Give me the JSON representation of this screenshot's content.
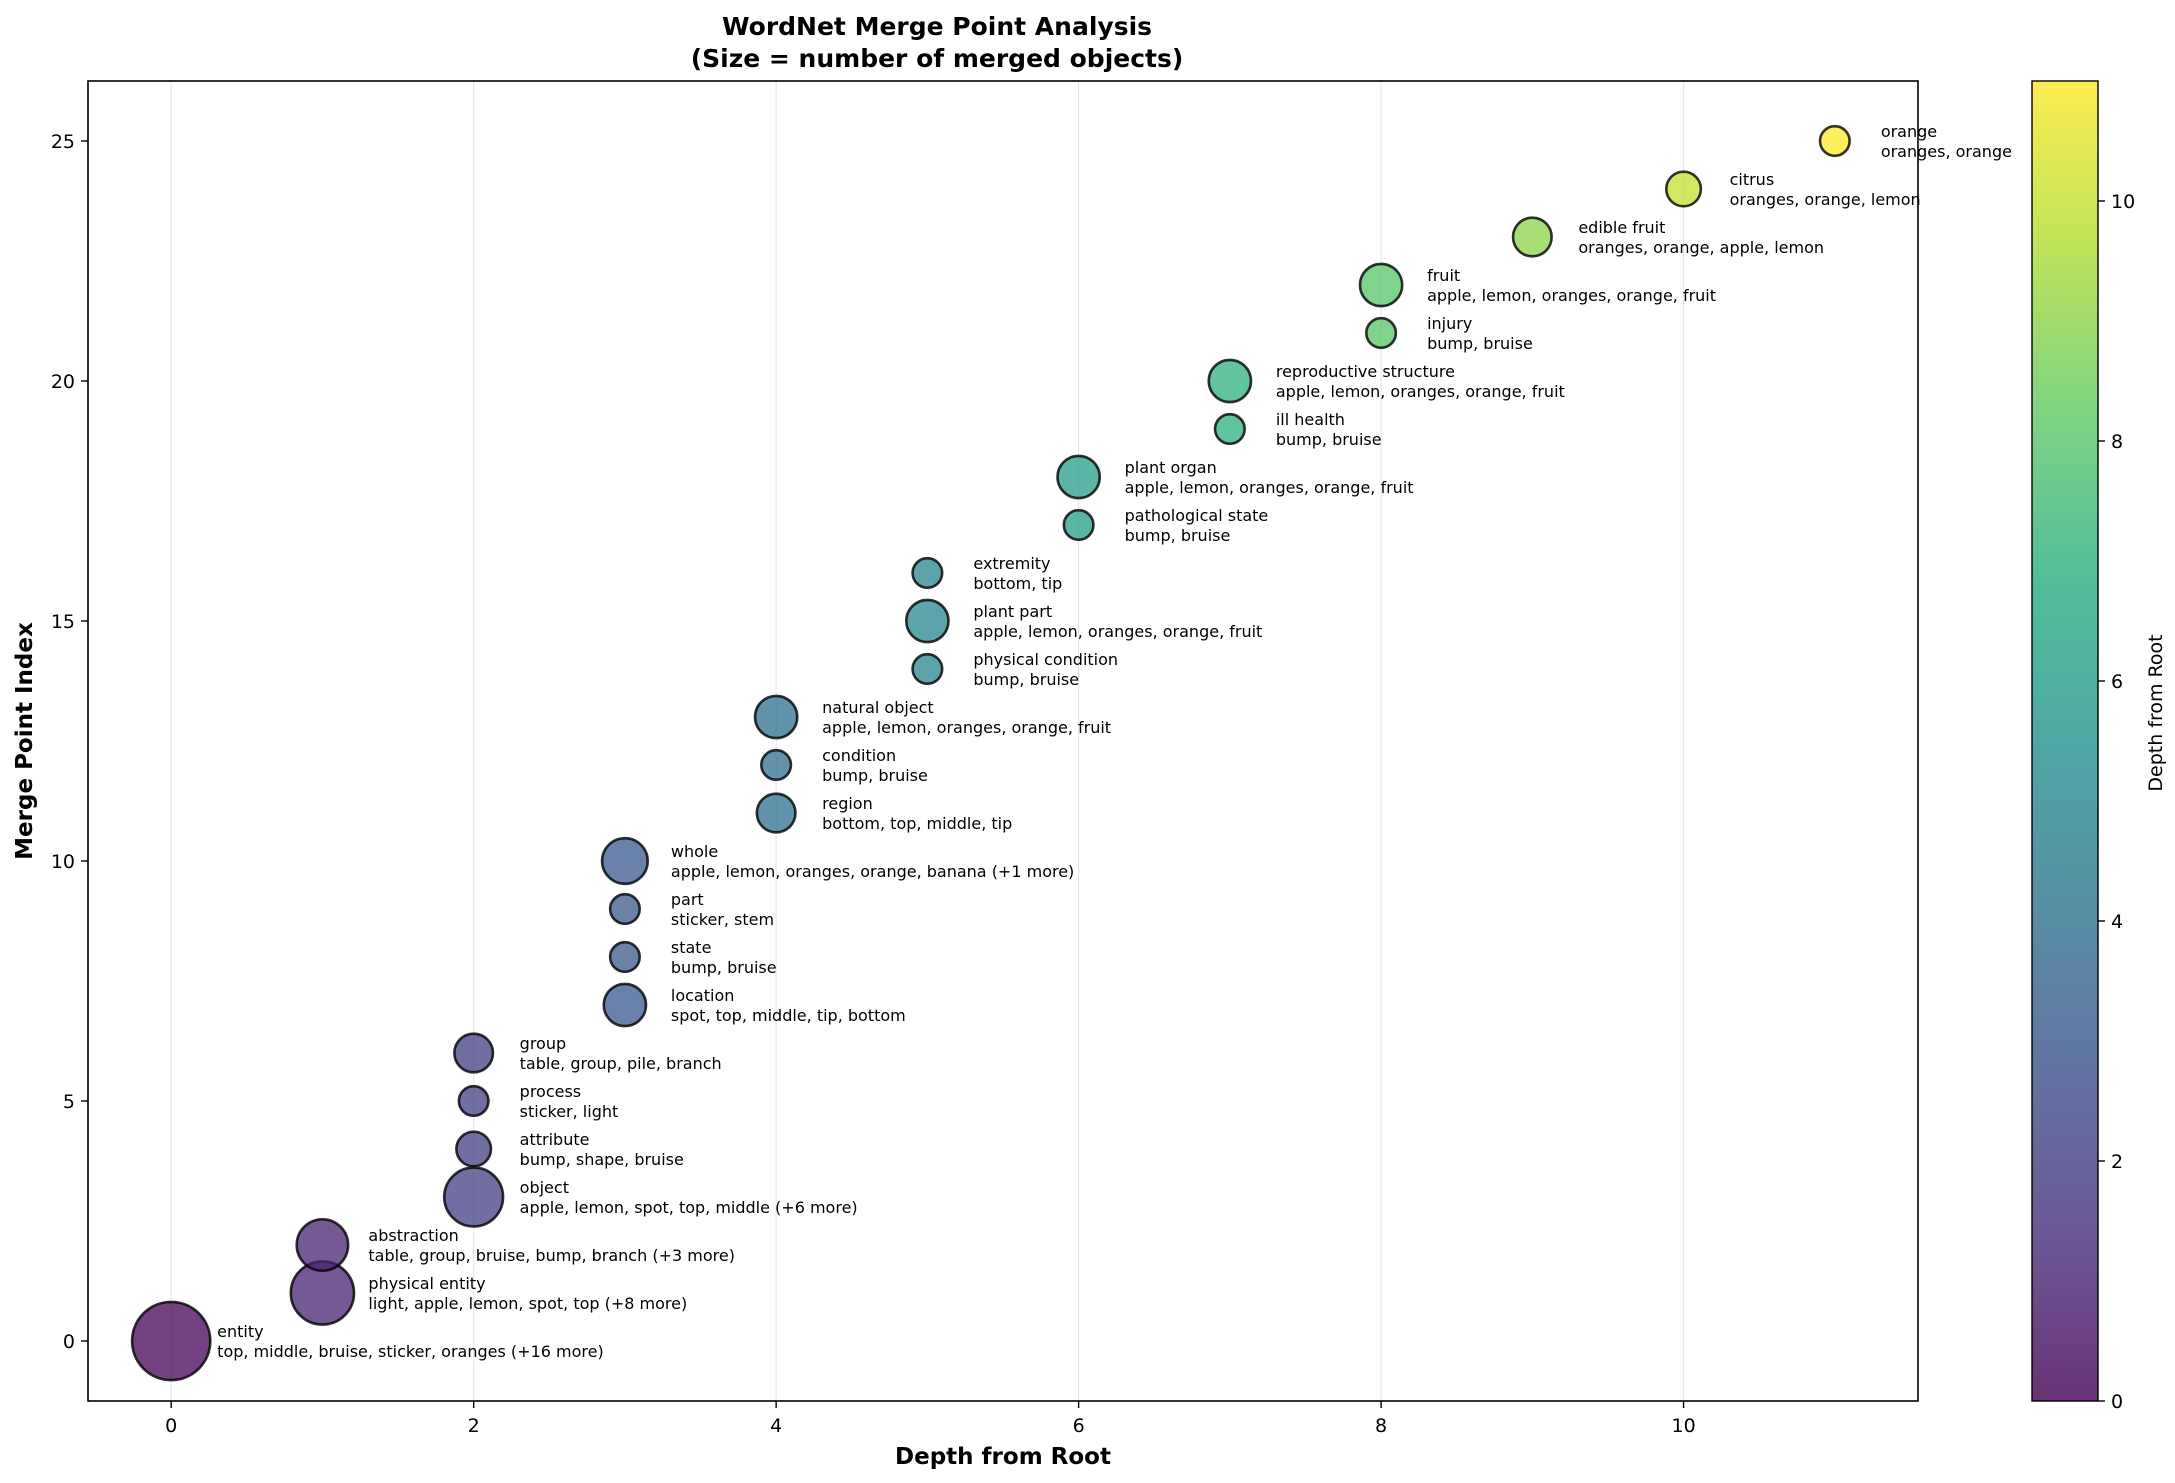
{
  "chart_data": {
    "type": "scatter",
    "title": "WordNet Merge Point Analysis",
    "subtitle": "(Size = number of merged objects)",
    "xlabel": "Depth from Root",
    "ylabel": "Merge Point Index",
    "xlim": [
      -0.55,
      11.55
    ],
    "ylim": [
      -1.25,
      26.25
    ],
    "xticks": [
      0,
      2,
      4,
      6,
      8,
      10
    ],
    "yticks": [
      0,
      5,
      10,
      15,
      20,
      25
    ],
    "grid": "vertical",
    "colormap": "viridis",
    "colorbar": {
      "label": "Depth from Root",
      "range": [
        0,
        11
      ],
      "ticks": [
        0,
        2,
        4,
        6,
        8,
        10
      ]
    },
    "points": [
      {
        "x": 0,
        "y": 0,
        "name": "entity",
        "objects": "top, middle, bruise, sticker, oranges (+16 more)",
        "count": 21
      },
      {
        "x": 1,
        "y": 1,
        "name": "physical entity",
        "objects": "light, apple, lemon, spot, top (+8 more)",
        "count": 13
      },
      {
        "x": 1,
        "y": 2,
        "name": "abstraction",
        "objects": "table, group, bruise, bump, branch (+3 more)",
        "count": 8
      },
      {
        "x": 2,
        "y": 3,
        "name": "object",
        "objects": "apple, lemon, spot, top, middle (+6 more)",
        "count": 11
      },
      {
        "x": 2,
        "y": 4,
        "name": "attribute",
        "objects": "bump, shape, bruise",
        "count": 3
      },
      {
        "x": 2,
        "y": 5,
        "name": "process",
        "objects": "sticker, light",
        "count": 2
      },
      {
        "x": 2,
        "y": 6,
        "name": "group",
        "objects": "table, group, pile, branch",
        "count": 4
      },
      {
        "x": 3,
        "y": 7,
        "name": "location",
        "objects": "spot, top, middle, tip, bottom",
        "count": 5
      },
      {
        "x": 3,
        "y": 8,
        "name": "state",
        "objects": "bump, bruise",
        "count": 2
      },
      {
        "x": 3,
        "y": 9,
        "name": "part",
        "objects": "sticker, stem",
        "count": 2
      },
      {
        "x": 3,
        "y": 10,
        "name": "whole",
        "objects": "apple, lemon, oranges, orange, banana (+1 more)",
        "count": 6
      },
      {
        "x": 4,
        "y": 11,
        "name": "region",
        "objects": "bottom, top, middle, tip",
        "count": 4
      },
      {
        "x": 4,
        "y": 12,
        "name": "condition",
        "objects": "bump, bruise",
        "count": 2
      },
      {
        "x": 4,
        "y": 13,
        "name": "natural object",
        "objects": "apple, lemon, oranges, orange, fruit",
        "count": 5
      },
      {
        "x": 5,
        "y": 14,
        "name": "physical condition",
        "objects": "bump, bruise",
        "count": 2
      },
      {
        "x": 5,
        "y": 15,
        "name": "plant part",
        "objects": "apple, lemon, oranges, orange, fruit",
        "count": 5
      },
      {
        "x": 5,
        "y": 16,
        "name": "extremity",
        "objects": "bottom, tip",
        "count": 2
      },
      {
        "x": 6,
        "y": 17,
        "name": "pathological state",
        "objects": "bump, bruise",
        "count": 2
      },
      {
        "x": 6,
        "y": 18,
        "name": "plant organ",
        "objects": "apple, lemon, oranges, orange, fruit",
        "count": 5
      },
      {
        "x": 7,
        "y": 19,
        "name": "ill health",
        "objects": "bump, bruise",
        "count": 2
      },
      {
        "x": 7,
        "y": 20,
        "name": "reproductive structure",
        "objects": "apple, lemon, oranges, orange, fruit",
        "count": 5
      },
      {
        "x": 8,
        "y": 21,
        "name": "injury",
        "objects": "bump, bruise",
        "count": 2
      },
      {
        "x": 8,
        "y": 22,
        "name": "fruit",
        "objects": "apple, lemon, oranges, orange, fruit",
        "count": 5
      },
      {
        "x": 9,
        "y": 23,
        "name": "edible fruit",
        "objects": "oranges, orange, apple, lemon",
        "count": 4
      },
      {
        "x": 10,
        "y": 24,
        "name": "citrus",
        "objects": "oranges, orange, lemon",
        "count": 3
      },
      {
        "x": 11,
        "y": 25,
        "name": "orange",
        "objects": "oranges, orange",
        "count": 2
      }
    ]
  }
}
